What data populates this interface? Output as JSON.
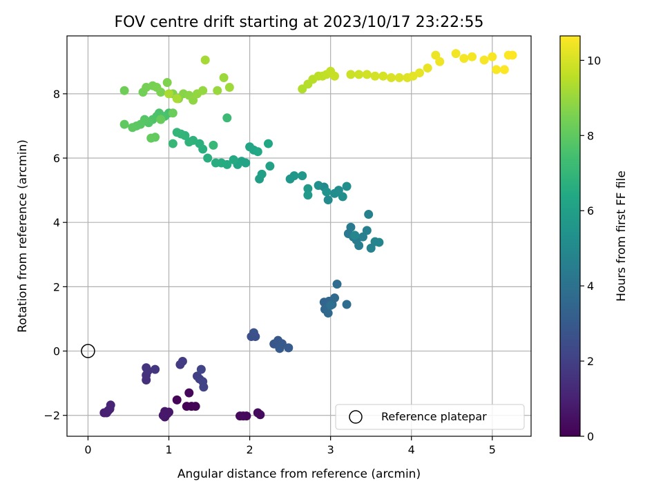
{
  "chart_data": {
    "type": "scatter",
    "title": "FOV centre drift starting at 2023/10/17 23:22:55",
    "xlabel": "Angular distance from reference (arcmin)",
    "ylabel": "Rotation from reference (arcmin)",
    "xlim": [
      -0.26,
      5.48
    ],
    "ylim": [
      -2.65,
      9.8
    ],
    "x_ticks": [
      0,
      1,
      2,
      3,
      4,
      5
    ],
    "x_tick_labels": [
      "0",
      "1",
      "2",
      "3",
      "4",
      "5"
    ],
    "y_ticks": [
      -2,
      0,
      2,
      4,
      6,
      8
    ],
    "y_tick_labels": [
      "−2",
      "0",
      "2",
      "4",
      "6",
      "8"
    ],
    "grid": true,
    "colormap": "viridis",
    "colorbar": {
      "label": "Hours from first FF file",
      "range": [
        0,
        10.65
      ],
      "ticks": [
        0,
        2,
        4,
        6,
        8,
        10
      ],
      "tick_labels": [
        "0",
        "2",
        "4",
        "6",
        "8",
        "10"
      ]
    },
    "reference": {
      "x": 0,
      "y": 0,
      "label": "Reference platepar",
      "marker": "open-circle"
    },
    "legend": {
      "position": "bottom-right",
      "entries": [
        "Reference platepar"
      ]
    },
    "series": [
      {
        "colored_by": "hours",
        "points": [
          [
            1.22,
            -1.72,
            0.05
          ],
          [
            1.28,
            -1.72,
            0.08
          ],
          [
            1.33,
            -1.72,
            0.11
          ],
          [
            1.1,
            -1.52,
            0.14
          ],
          [
            1.25,
            -1.3,
            0.17
          ],
          [
            1.92,
            -2.02,
            0.2
          ],
          [
            1.96,
            -2.02,
            0.23
          ],
          [
            1.88,
            -2.02,
            0.26
          ],
          [
            2.1,
            -1.92,
            0.29
          ],
          [
            2.13,
            -1.98,
            0.32
          ],
          [
            0.95,
            -2.05,
            0.6
          ],
          [
            0.98,
            -1.95,
            0.63
          ],
          [
            0.95,
            -1.88,
            0.66
          ],
          [
            1.0,
            -1.9,
            0.69
          ],
          [
            0.93,
            -2.0,
            0.72
          ],
          [
            0.2,
            -1.92,
            0.95
          ],
          [
            0.23,
            -1.92,
            0.98
          ],
          [
            0.25,
            -1.85,
            1.01
          ],
          [
            0.27,
            -1.8,
            1.04
          ],
          [
            0.28,
            -1.68,
            1.07
          ],
          [
            0.72,
            -0.9,
            1.45
          ],
          [
            0.72,
            -0.75,
            1.5
          ],
          [
            0.74,
            -0.62,
            1.55
          ],
          [
            0.72,
            -0.52,
            1.6
          ],
          [
            0.83,
            -0.57,
            1.65
          ],
          [
            1.14,
            -0.42,
            1.8
          ],
          [
            1.17,
            -0.32,
            1.85
          ],
          [
            1.35,
            -0.78,
            1.95
          ],
          [
            1.38,
            -0.87,
            2.0
          ],
          [
            1.42,
            -0.95,
            2.05
          ],
          [
            1.43,
            -1.12,
            2.1
          ],
          [
            1.4,
            -0.57,
            2.15
          ],
          [
            2.02,
            0.45,
            2.6
          ],
          [
            2.07,
            0.45,
            2.65
          ],
          [
            2.05,
            0.57,
            2.7
          ],
          [
            2.3,
            0.22,
            2.85
          ],
          [
            2.35,
            0.33,
            2.9
          ],
          [
            2.4,
            0.23,
            2.95
          ],
          [
            2.37,
            0.08,
            3.0
          ],
          [
            2.48,
            0.1,
            3.05
          ],
          [
            2.92,
            1.52,
            3.4
          ],
          [
            2.95,
            1.48,
            3.45
          ],
          [
            2.98,
            1.55,
            3.5
          ],
          [
            2.93,
            1.3,
            3.55
          ],
          [
            2.97,
            1.18,
            3.6
          ],
          [
            3.02,
            1.45,
            3.65
          ],
          [
            3.05,
            1.65,
            3.7
          ],
          [
            3.08,
            2.08,
            3.75
          ],
          [
            3.2,
            1.45,
            3.8
          ],
          [
            3.0,
            1.42,
            3.85
          ],
          [
            3.22,
            3.65,
            4.3
          ],
          [
            3.25,
            3.85,
            4.35
          ],
          [
            3.28,
            3.55,
            4.4
          ],
          [
            3.32,
            3.45,
            4.45
          ],
          [
            3.35,
            3.28,
            4.5
          ],
          [
            3.4,
            3.55,
            4.55
          ],
          [
            3.45,
            3.75,
            4.6
          ],
          [
            3.47,
            4.25,
            4.65
          ],
          [
            3.5,
            3.2,
            4.7
          ],
          [
            3.55,
            3.4,
            4.75
          ],
          [
            3.6,
            3.38,
            4.8
          ],
          [
            3.3,
            3.6,
            4.85
          ],
          [
            2.92,
            5.1,
            5.0
          ],
          [
            2.97,
            4.7,
            5.05
          ],
          [
            3.05,
            4.9,
            5.1
          ],
          [
            3.1,
            5.0,
            5.15
          ],
          [
            3.15,
            4.8,
            5.2
          ],
          [
            3.2,
            5.12,
            5.25
          ],
          [
            2.85,
            5.15,
            5.3
          ],
          [
            2.95,
            4.95,
            5.35
          ],
          [
            2.5,
            5.35,
            5.55
          ],
          [
            2.55,
            5.45,
            5.6
          ],
          [
            2.65,
            5.45,
            5.65
          ],
          [
            2.72,
            5.05,
            5.7
          ],
          [
            2.72,
            4.85,
            5.75
          ],
          [
            2.12,
            5.35,
            5.95
          ],
          [
            2.15,
            5.5,
            6.0
          ],
          [
            2.25,
            5.75,
            6.05
          ],
          [
            1.95,
            5.85,
            6.1
          ],
          [
            1.9,
            5.9,
            6.15
          ],
          [
            1.85,
            5.8,
            6.2
          ],
          [
            2.0,
            6.35,
            6.25
          ],
          [
            2.05,
            6.25,
            6.3
          ],
          [
            2.23,
            6.45,
            6.35
          ],
          [
            2.1,
            6.2,
            6.4
          ],
          [
            1.8,
            5.95,
            6.45
          ],
          [
            1.72,
            5.8,
            6.5
          ],
          [
            1.65,
            5.85,
            6.55
          ],
          [
            1.58,
            5.85,
            6.6
          ],
          [
            1.48,
            6.0,
            6.65
          ],
          [
            1.42,
            6.28,
            6.7
          ],
          [
            1.38,
            6.45,
            6.75
          ],
          [
            1.3,
            6.55,
            6.8
          ],
          [
            1.25,
            6.5,
            6.85
          ],
          [
            1.2,
            6.7,
            6.9
          ],
          [
            1.15,
            6.75,
            6.95
          ],
          [
            1.1,
            6.8,
            7.0
          ],
          [
            1.05,
            6.45,
            7.05
          ],
          [
            1.55,
            6.4,
            7.1
          ],
          [
            1.72,
            7.25,
            7.2
          ],
          [
            1.0,
            7.4,
            7.5
          ],
          [
            0.95,
            7.3,
            7.55
          ],
          [
            0.88,
            7.4,
            7.6
          ],
          [
            0.85,
            7.3,
            7.65
          ],
          [
            0.8,
            7.2,
            7.7
          ],
          [
            0.75,
            7.1,
            7.75
          ],
          [
            0.7,
            7.2,
            7.8
          ],
          [
            0.65,
            7.05,
            7.85
          ],
          [
            0.6,
            7.0,
            7.9
          ],
          [
            0.55,
            6.95,
            7.95
          ],
          [
            0.45,
            7.05,
            8.0
          ],
          [
            0.83,
            6.65,
            8.05
          ],
          [
            0.78,
            6.62,
            8.1
          ],
          [
            0.9,
            7.2,
            8.15
          ],
          [
            1.05,
            7.4,
            8.2
          ],
          [
            0.45,
            8.1,
            8.3
          ],
          [
            0.68,
            8.05,
            8.35
          ],
          [
            0.72,
            8.2,
            8.4
          ],
          [
            0.8,
            8.25,
            8.45
          ],
          [
            0.85,
            8.2,
            8.5
          ],
          [
            0.9,
            8.05,
            8.55
          ],
          [
            0.98,
            8.35,
            8.6
          ],
          [
            1.05,
            8.0,
            8.65
          ],
          [
            1.12,
            7.85,
            8.7
          ],
          [
            1.18,
            8.0,
            8.75
          ],
          [
            1.25,
            7.95,
            8.8
          ],
          [
            1.3,
            7.8,
            8.85
          ],
          [
            1.35,
            8.0,
            8.9
          ],
          [
            1.42,
            8.1,
            8.95
          ],
          [
            1.6,
            8.1,
            9.0
          ],
          [
            1.68,
            8.5,
            9.05
          ],
          [
            1.75,
            8.2,
            9.1
          ],
          [
            1.45,
            9.05,
            9.2
          ],
          [
            1.1,
            7.85,
            9.25
          ],
          [
            1.0,
            8.0,
            9.3
          ],
          [
            2.65,
            8.15,
            9.4
          ],
          [
            2.72,
            8.3,
            9.45
          ],
          [
            2.78,
            8.45,
            9.5
          ],
          [
            2.85,
            8.55,
            9.55
          ],
          [
            2.9,
            8.55,
            9.6
          ],
          [
            2.95,
            8.6,
            9.65
          ],
          [
            3.0,
            8.7,
            9.7
          ],
          [
            3.05,
            8.55,
            9.75
          ],
          [
            3.25,
            8.6,
            9.8
          ],
          [
            3.35,
            8.6,
            9.85
          ],
          [
            3.45,
            8.6,
            9.9
          ],
          [
            3.55,
            8.55,
            9.95
          ],
          [
            3.65,
            8.55,
            10.0
          ],
          [
            3.75,
            8.5,
            10.05
          ],
          [
            3.85,
            8.5,
            10.1
          ],
          [
            3.95,
            8.5,
            10.15
          ],
          [
            4.02,
            8.55,
            10.2
          ],
          [
            4.1,
            8.65,
            10.25
          ],
          [
            4.2,
            8.8,
            10.3
          ],
          [
            4.3,
            9.2,
            10.35
          ],
          [
            4.35,
            9.0,
            10.4
          ],
          [
            4.55,
            9.25,
            10.45
          ],
          [
            4.65,
            9.1,
            10.5
          ],
          [
            4.75,
            9.15,
            10.52
          ],
          [
            4.9,
            9.05,
            10.55
          ],
          [
            5.0,
            9.15,
            10.57
          ],
          [
            5.05,
            8.75,
            10.59
          ],
          [
            5.15,
            8.75,
            10.61
          ],
          [
            5.2,
            9.2,
            10.63
          ],
          [
            5.25,
            9.2,
            10.65
          ]
        ]
      }
    ]
  }
}
